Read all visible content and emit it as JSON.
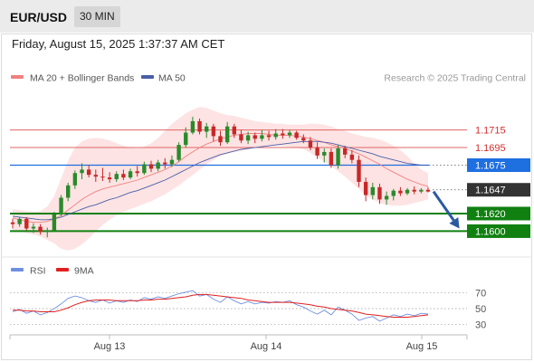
{
  "header": {
    "symbol": "EUR/USD",
    "timeframe": "30 MIN"
  },
  "timestamp": "Friday, August 15, 2025 1:37:37 AM CET",
  "legend": {
    "ma20": "MA 20 + Bollinger Bands",
    "ma50": "MA 50",
    "rsi": "RSI",
    "ma9": "9MA",
    "credit": "Research © 2025 Trading Central"
  },
  "colors": {
    "ma20": "#f08080",
    "bollinger_fill": "#fcd9d9",
    "ma50": "#4a5fa8",
    "resistance": "#e06666",
    "pivot": "#1e6fe0",
    "support": "#108010",
    "current": "#333333",
    "rsi": "#6f8fe0",
    "rsi_ma": "#e02020",
    "candle_up": "#2a8a2a",
    "candle_down": "#c62828",
    "arrow": "#2c5aa0"
  },
  "chart_data": {
    "type": "candlestick",
    "xlabels": [
      "Aug 13",
      "Aug 14",
      "Aug 15"
    ],
    "price_ylim": [
      1.1585,
      1.1765
    ],
    "levels": [
      {
        "name": "resistance-2",
        "value": 1.1715,
        "label": "1.1715",
        "kind": "resistance"
      },
      {
        "name": "resistance-1",
        "value": 1.1695,
        "label": "1.1695",
        "kind": "resistance"
      },
      {
        "name": "pivot",
        "value": 1.1675,
        "label": "1.1675",
        "kind": "pivot"
      },
      {
        "name": "current",
        "value": 1.1647,
        "label": "1.1647",
        "kind": "current"
      },
      {
        "name": "support-1",
        "value": 1.162,
        "label": "1.1620",
        "kind": "support"
      },
      {
        "name": "support-2",
        "value": 1.16,
        "label": "1.1600",
        "kind": "support"
      }
    ],
    "forecast_arrow": {
      "from_index": 60,
      "from_value": 1.1645,
      "to_index": 64,
      "to_value": 1.1603
    },
    "candles": [
      [
        1.161,
        1.1614,
        1.1603,
        1.1608
      ],
      [
        1.1608,
        1.1616,
        1.1605,
        1.1614
      ],
      [
        1.1614,
        1.1616,
        1.1601,
        1.1603
      ],
      [
        1.1603,
        1.1609,
        1.1598,
        1.1605
      ],
      [
        1.1605,
        1.1608,
        1.1596,
        1.1599
      ],
      [
        1.1599,
        1.1604,
        1.1593,
        1.1601
      ],
      [
        1.1601,
        1.1622,
        1.1599,
        1.1619
      ],
      [
        1.1619,
        1.1641,
        1.1617,
        1.1638
      ],
      [
        1.1638,
        1.1655,
        1.1634,
        1.1652
      ],
      [
        1.1652,
        1.1669,
        1.1648,
        1.1666
      ],
      [
        1.1666,
        1.1677,
        1.1659,
        1.167
      ],
      [
        1.167,
        1.1675,
        1.1661,
        1.1664
      ],
      [
        1.1664,
        1.167,
        1.1656,
        1.1662
      ],
      [
        1.1662,
        1.1672,
        1.1657,
        1.1661
      ],
      [
        1.1661,
        1.1667,
        1.1655,
        1.1659
      ],
      [
        1.1659,
        1.1668,
        1.1656,
        1.1665
      ],
      [
        1.1665,
        1.167,
        1.1658,
        1.1661
      ],
      [
        1.1661,
        1.1671,
        1.1659,
        1.1668
      ],
      [
        1.1668,
        1.1674,
        1.1662,
        1.1666
      ],
      [
        1.1666,
        1.1679,
        1.1664,
        1.1676
      ],
      [
        1.1676,
        1.168,
        1.1667,
        1.1671
      ],
      [
        1.1671,
        1.1681,
        1.1668,
        1.1678
      ],
      [
        1.1678,
        1.1683,
        1.1671,
        1.1676
      ],
      [
        1.1676,
        1.1686,
        1.1673,
        1.1681
      ],
      [
        1.1681,
        1.1701,
        1.1679,
        1.1698
      ],
      [
        1.1698,
        1.1718,
        1.1695,
        1.1712
      ],
      [
        1.1712,
        1.173,
        1.171,
        1.1725
      ],
      [
        1.1725,
        1.1728,
        1.171,
        1.1713
      ],
      [
        1.1713,
        1.1723,
        1.1706,
        1.1719
      ],
      [
        1.1719,
        1.1722,
        1.1702,
        1.1708
      ],
      [
        1.1708,
        1.1714,
        1.1697,
        1.1701
      ],
      [
        1.1701,
        1.1724,
        1.1699,
        1.1719
      ],
      [
        1.1719,
        1.1722,
        1.1706,
        1.171
      ],
      [
        1.171,
        1.1715,
        1.17,
        1.1703
      ],
      [
        1.1703,
        1.1713,
        1.1699,
        1.1709
      ],
      [
        1.1709,
        1.1712,
        1.17,
        1.1705
      ],
      [
        1.1705,
        1.1715,
        1.1702,
        1.1709
      ],
      [
        1.1709,
        1.1714,
        1.1703,
        1.1707
      ],
      [
        1.1707,
        1.1716,
        1.1704,
        1.1711
      ],
      [
        1.1711,
        1.1716,
        1.1705,
        1.1709
      ],
      [
        1.1709,
        1.1715,
        1.1706,
        1.1712
      ],
      [
        1.1712,
        1.1714,
        1.1704,
        1.1706
      ],
      [
        1.1706,
        1.171,
        1.17,
        1.1703
      ],
      [
        1.1703,
        1.1707,
        1.1692,
        1.1695
      ],
      [
        1.1695,
        1.1701,
        1.1682,
        1.1686
      ],
      [
        1.1686,
        1.1694,
        1.1678,
        1.169
      ],
      [
        1.169,
        1.1694,
        1.1672,
        1.1675
      ],
      [
        1.1675,
        1.1698,
        1.1671,
        1.1694
      ],
      [
        1.1694,
        1.1697,
        1.1683,
        1.1687
      ],
      [
        1.1687,
        1.1692,
        1.1677,
        1.1681
      ],
      [
        1.1681,
        1.1686,
        1.165,
        1.1656
      ],
      [
        1.1656,
        1.1661,
        1.1634,
        1.1641
      ],
      [
        1.1641,
        1.1655,
        1.1636,
        1.165
      ],
      [
        1.165,
        1.1654,
        1.1631,
        1.1636
      ],
      [
        1.1636,
        1.1645,
        1.163,
        1.164
      ],
      [
        1.164,
        1.1648,
        1.1635,
        1.1646
      ],
      [
        1.1646,
        1.165,
        1.164,
        1.1643
      ],
      [
        1.1643,
        1.1649,
        1.1641,
        1.1647
      ],
      [
        1.1647,
        1.1651,
        1.1642,
        1.1645
      ],
      [
        1.1645,
        1.1649,
        1.1643,
        1.1647
      ],
      [
        1.1647,
        1.165,
        1.1644,
        1.1645
      ]
    ],
    "bb_middle": [
      1.1615,
      1.1613,
      1.1611,
      1.161,
      1.161,
      1.1611,
      1.1614,
      1.1618,
      1.1624,
      1.163,
      1.1636,
      1.1641,
      1.1645,
      1.1648,
      1.165,
      1.1652,
      1.1654,
      1.1656,
      1.1658,
      1.1661,
      1.1664,
      1.1667,
      1.167,
      1.1674,
      1.1679,
      1.1685,
      1.169,
      1.1695,
      1.1699,
      1.1702,
      1.1705,
      1.1707,
      1.1709,
      1.171,
      1.1711,
      1.1711,
      1.1711,
      1.171,
      1.1709,
      1.1709,
      1.1709,
      1.1708,
      1.1707,
      1.1705,
      1.1703,
      1.1701,
      1.1698,
      1.1696,
      1.1694,
      1.1691,
      1.1688,
      1.1684,
      1.168,
      1.1676,
      1.1671,
      1.1667,
      1.1663,
      1.1659,
      1.1656,
      1.1653,
      1.1651
    ],
    "bb_upper": [
      1.1625,
      1.1624,
      1.1623,
      1.1622,
      1.1623,
      1.1628,
      1.164,
      1.166,
      1.168,
      1.1695,
      1.1702,
      1.1705,
      1.1706,
      1.1705,
      1.1703,
      1.17,
      1.1697,
      1.1695,
      1.1694,
      1.1696,
      1.17,
      1.1706,
      1.1714,
      1.1722,
      1.1728,
      1.1734,
      1.1738,
      1.1741,
      1.174,
      1.1737,
      1.1734,
      1.1732,
      1.1731,
      1.1729,
      1.1727,
      1.1725,
      1.1724,
      1.1723,
      1.1722,
      1.1722,
      1.1721,
      1.1721,
      1.1721,
      1.1722,
      1.1722,
      1.1721,
      1.1719,
      1.1716,
      1.1714,
      1.1711,
      1.1709,
      1.1707,
      1.1706,
      1.1704,
      1.1701,
      1.1697,
      1.1692,
      1.1685,
      1.1677,
      1.167,
      1.1666
    ],
    "bb_lower": [
      1.1601,
      1.16,
      1.1598,
      1.1596,
      1.1594,
      1.159,
      1.1586,
      1.158,
      1.1578,
      1.158,
      1.1585,
      1.1592,
      1.16,
      1.1607,
      1.1613,
      1.1618,
      1.1622,
      1.1625,
      1.1628,
      1.1631,
      1.1634,
      1.1638,
      1.1642,
      1.1647,
      1.1652,
      1.1658,
      1.1664,
      1.167,
      1.1676,
      1.1681,
      1.1685,
      1.1688,
      1.169,
      1.1691,
      1.1693,
      1.1695,
      1.1696,
      1.1697,
      1.1697,
      1.1697,
      1.1696,
      1.1695,
      1.1693,
      1.1689,
      1.1684,
      1.1679,
      1.1674,
      1.1668,
      1.1662,
      1.1655,
      1.1648,
      1.1641,
      1.1636,
      1.1632,
      1.163,
      1.1629,
      1.1629,
      1.163,
      1.1632,
      1.1634,
      1.1636
    ],
    "ma50": [
      1.1617,
      1.1616,
      1.1615,
      1.1614,
      1.1613,
      1.1613,
      1.1614,
      1.1616,
      1.1619,
      1.1622,
      1.1625,
      1.1628,
      1.163,
      1.1633,
      1.1636,
      1.1638,
      1.1641,
      1.1644,
      1.1646,
      1.1649,
      1.1652,
      1.1655,
      1.1658,
      1.1662,
      1.1666,
      1.167,
      1.1674,
      1.1678,
      1.1681,
      1.1684,
      1.1687,
      1.1689,
      1.1691,
      1.1693,
      1.1694,
      1.1695,
      1.1696,
      1.1697,
      1.1698,
      1.1699,
      1.17,
      1.1701,
      1.1702,
      1.1702,
      1.1702,
      1.1701,
      1.17,
      1.1698,
      1.1696,
      1.1694,
      1.1692,
      1.169,
      1.1688,
      1.1685,
      1.1683,
      1.1681,
      1.1679,
      1.1677,
      1.1676,
      1.1675,
      1.1675
    ],
    "rsi": {
      "ylim": [
        20,
        80
      ],
      "ticks": [
        70,
        50,
        30
      ],
      "rsi_values": [
        46,
        49,
        44,
        47,
        42,
        45,
        50,
        56,
        63,
        66,
        64,
        60,
        58,
        61,
        57,
        60,
        58,
        61,
        59,
        64,
        62,
        65,
        63,
        66,
        69,
        71,
        73,
        66,
        68,
        62,
        58,
        65,
        60,
        56,
        59,
        56,
        58,
        57,
        59,
        58,
        60,
        55,
        52,
        47,
        43,
        48,
        42,
        52,
        48,
        43,
        35,
        38,
        40,
        34,
        38,
        42,
        40,
        43,
        41,
        44,
        43
      ],
      "ma9_values": [
        48,
        48,
        47,
        47,
        46,
        46,
        46,
        48,
        51,
        55,
        58,
        60,
        61,
        61,
        61,
        60,
        60,
        60,
        60,
        61,
        61,
        62,
        62,
        63,
        64,
        65,
        67,
        68,
        68,
        67,
        66,
        65,
        64,
        63,
        61,
        60,
        59,
        58,
        58,
        58,
        58,
        57,
        56,
        55,
        53,
        52,
        50,
        49,
        48,
        47,
        45,
        43,
        42,
        41,
        40,
        39,
        39,
        39,
        40,
        41,
        42
      ]
    }
  }
}
